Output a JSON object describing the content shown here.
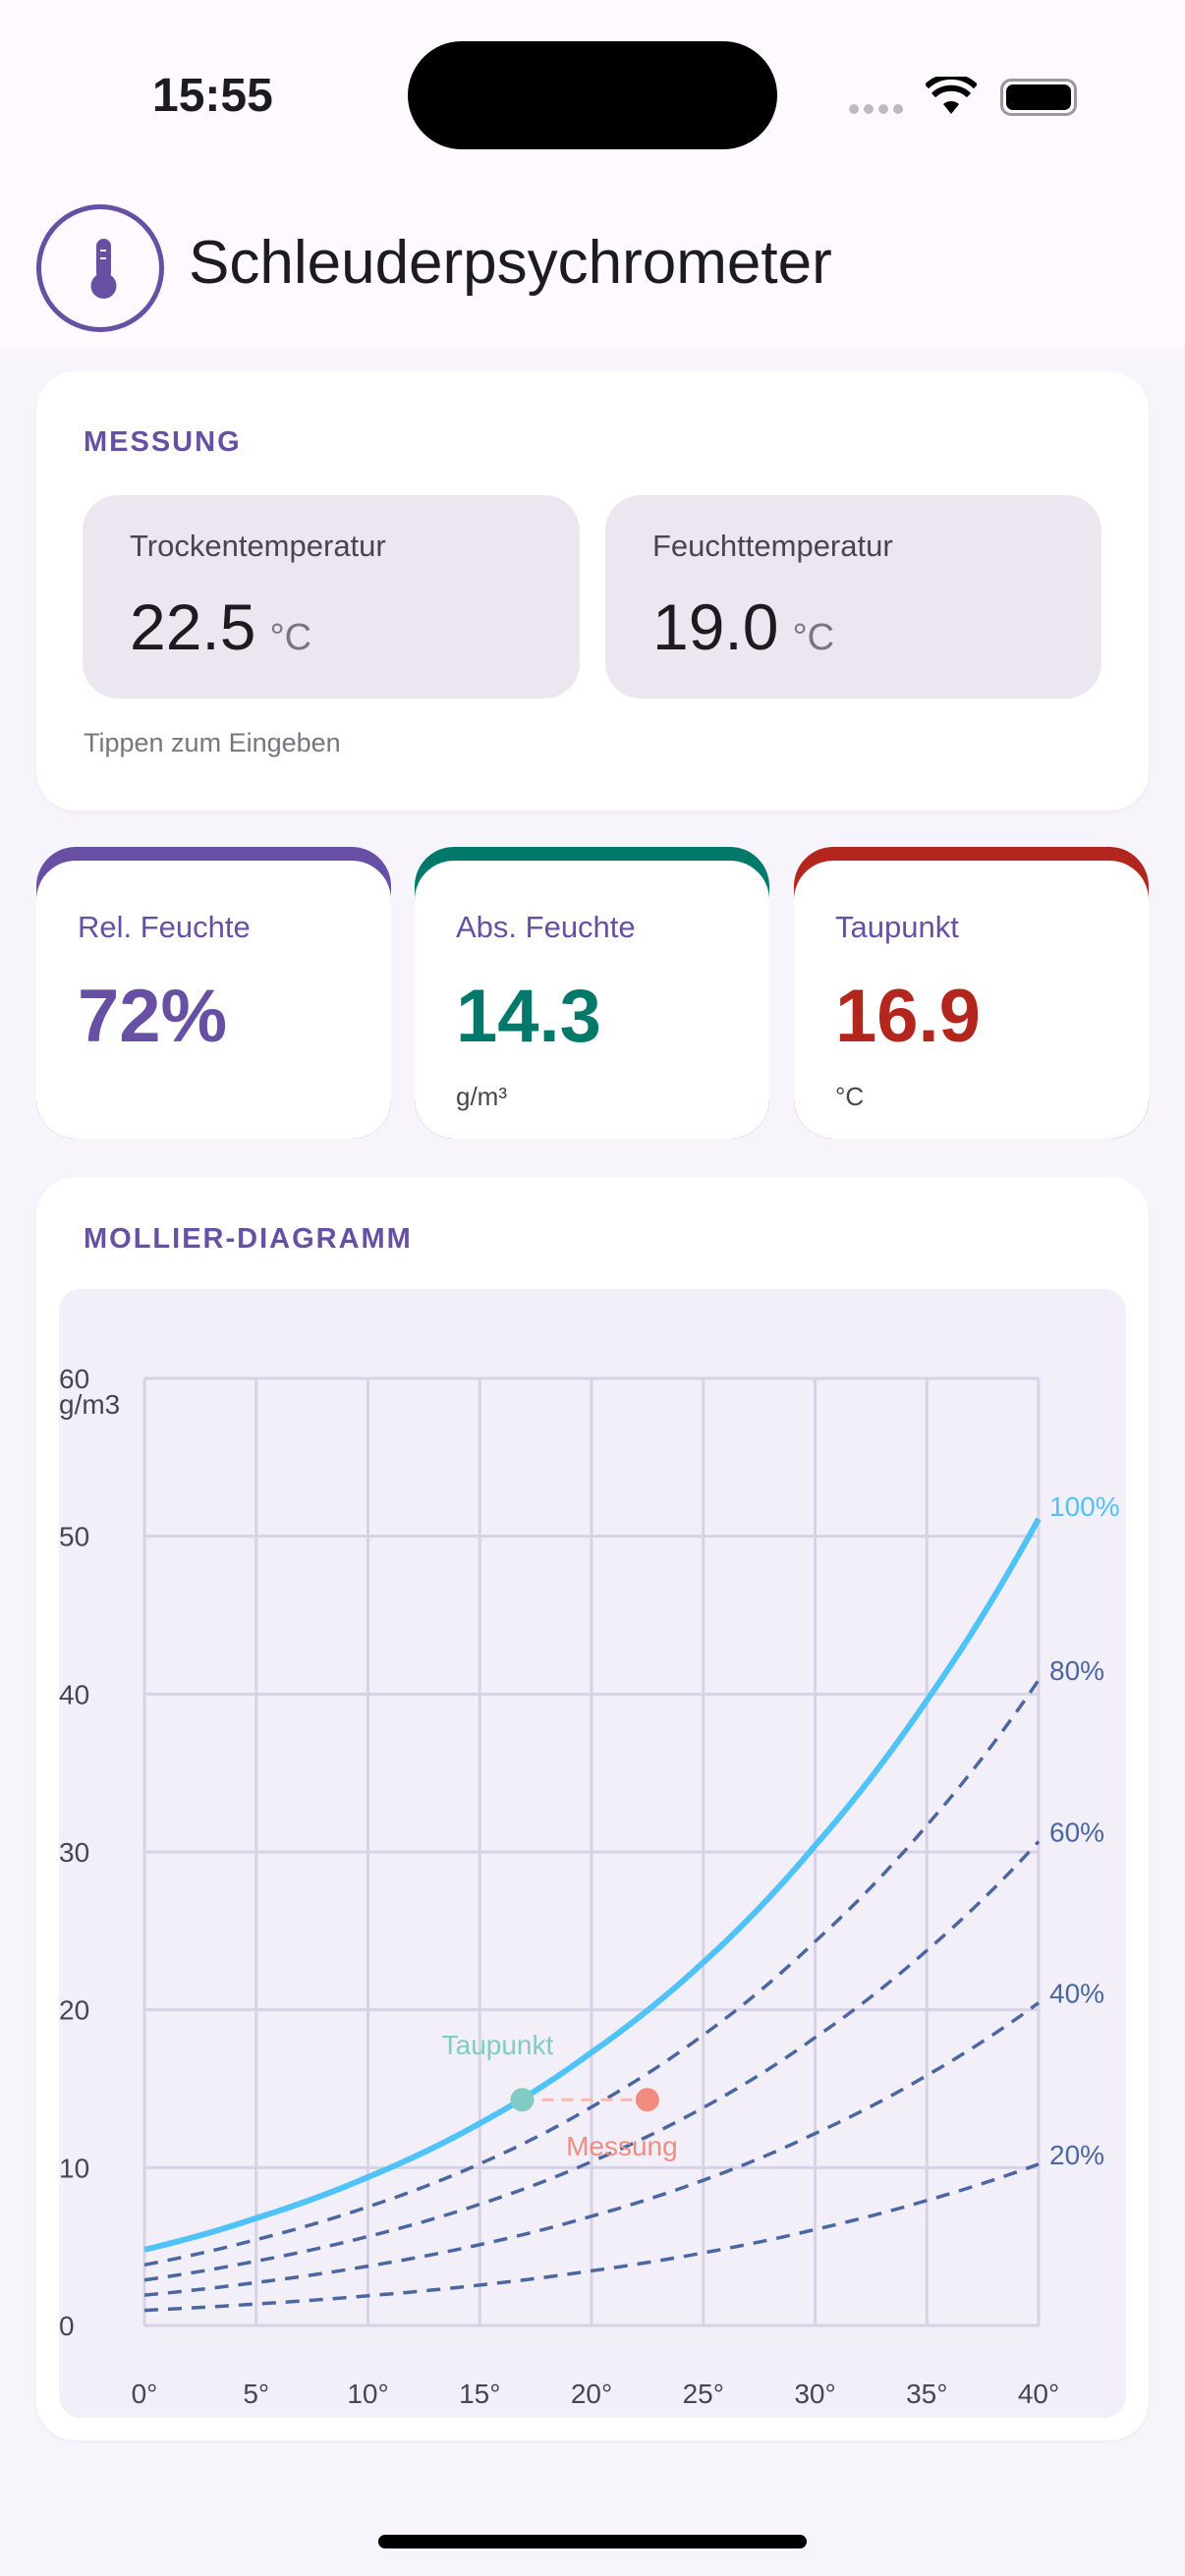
{
  "status_bar": {
    "time": "15:55"
  },
  "header": {
    "title": "Schleuderpsychrometer",
    "icon": "thermometer-icon"
  },
  "measurement": {
    "section_label": "MESSUNG",
    "dry": {
      "label": "Trockentemperatur",
      "value": "22.5",
      "unit": "°C"
    },
    "wet": {
      "label": "Feuchttemperatur",
      "value": "19.0",
      "unit": "°C"
    },
    "hint": "Tippen zum Eingeben"
  },
  "stats": [
    {
      "label": "Rel. Feuchte",
      "value": "72%",
      "unit": "",
      "color": "#6750A4"
    },
    {
      "label": "Abs. Feuchte",
      "value": "14.3",
      "unit": "g/m³",
      "color": "#00796B"
    },
    {
      "label": "Taupunkt",
      "value": "16.9",
      "unit": "°C",
      "color": "#B3261E"
    }
  ],
  "chart_section": {
    "label": "MOLLIER-DIAGRAMM"
  },
  "chart_data": {
    "type": "line",
    "xlim": [
      0,
      40
    ],
    "ylim": [
      0,
      60
    ],
    "x_ticks": [
      "0°",
      "5°",
      "10°",
      "15°",
      "20°",
      "25°",
      "30°",
      "35°",
      "40°"
    ],
    "y_ticks": [
      "0",
      "10",
      "20",
      "30",
      "40",
      "50",
      "60"
    ],
    "ylabel": "g/m3",
    "grid": true,
    "x": [
      0,
      5,
      10,
      15,
      20,
      25,
      30,
      35,
      40
    ],
    "series": [
      {
        "name": "100%",
        "rh": 1.0,
        "style": "solid",
        "color": "#4FC3F7",
        "values": [
          4.8,
          6.8,
          9.4,
          12.8,
          17.3,
          23.0,
          30.4,
          39.6,
          51.1
        ]
      },
      {
        "name": "80%",
        "rh": 0.8,
        "style": "dashed",
        "color": "#4A67A1",
        "values": [
          3.84,
          5.44,
          7.52,
          10.24,
          13.84,
          18.4,
          24.32,
          31.68,
          40.88
        ]
      },
      {
        "name": "60%",
        "rh": 0.6,
        "style": "dashed",
        "color": "#4A67A1",
        "values": [
          2.88,
          4.08,
          5.64,
          7.68,
          10.38,
          13.8,
          18.24,
          23.76,
          30.66
        ]
      },
      {
        "name": "40%",
        "rh": 0.4,
        "style": "dashed",
        "color": "#4A67A1",
        "values": [
          1.92,
          2.72,
          3.76,
          5.12,
          6.92,
          9.2,
          12.16,
          15.84,
          20.44
        ]
      },
      {
        "name": "20%",
        "rh": 0.2,
        "style": "dashed",
        "color": "#4A67A1",
        "values": [
          0.96,
          1.36,
          1.88,
          2.56,
          3.46,
          4.6,
          6.08,
          7.92,
          10.22
        ]
      }
    ],
    "points": [
      {
        "label": "Taupunkt",
        "x": 16.9,
        "y": 14.3,
        "color": "#80CBC4"
      },
      {
        "label": "Messung",
        "x": 22.5,
        "y": 14.3,
        "color": "#F28B82"
      }
    ]
  }
}
